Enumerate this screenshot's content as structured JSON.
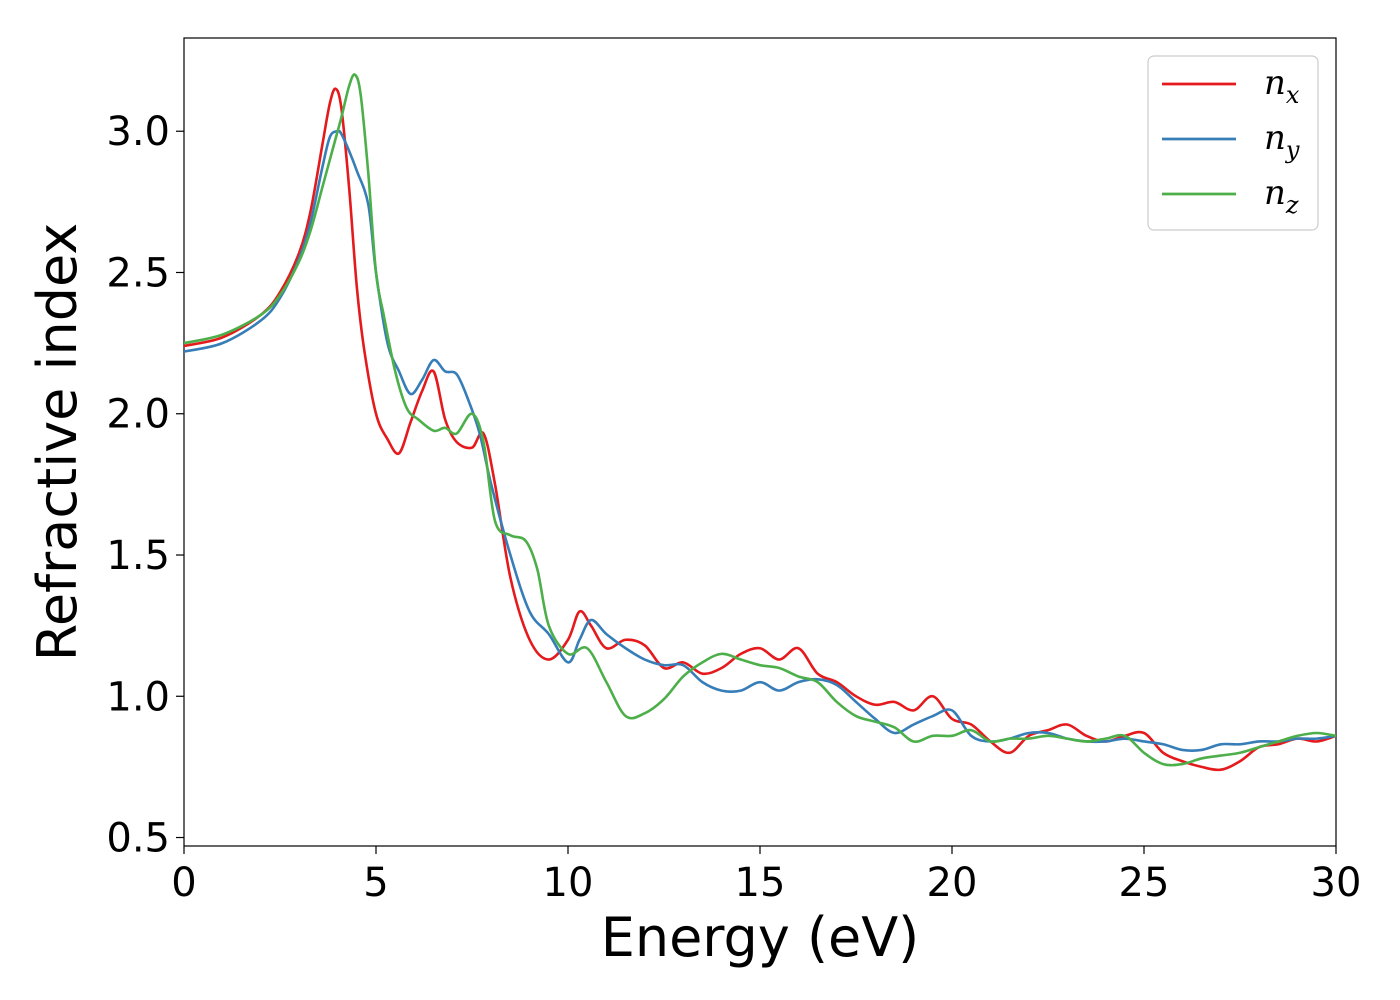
{
  "chart_data": {
    "type": "line",
    "title": "",
    "xlabel": "Energy (eV)",
    "ylabel": "Refractive index",
    "xlim": [
      0,
      30
    ],
    "ylim": [
      0.47,
      3.33
    ],
    "xticks": [
      0,
      5,
      10,
      15,
      20,
      25,
      30
    ],
    "xtick_labels": [
      "0",
      "5",
      "10",
      "15",
      "20",
      "25",
      "30"
    ],
    "yticks": [
      0.5,
      1.0,
      1.5,
      2.0,
      2.5,
      3.0
    ],
    "ytick_labels": [
      "0.5",
      "1.0",
      "1.5",
      "2.0",
      "2.5",
      "3.0"
    ],
    "grid": false,
    "legend_position": "top-right",
    "series": [
      {
        "name": "n_x",
        "label_base": "n",
        "label_sub": "x",
        "color": "#e41a1c",
        "x": [
          0,
          1,
          2,
          2.5,
          3,
          3.3,
          3.6,
          3.8,
          3.95,
          4.1,
          4.3,
          4.5,
          4.7,
          5,
          5.3,
          5.6,
          5.9,
          6.2,
          6.5,
          6.8,
          7.1,
          7.5,
          7.8,
          8.1,
          8.5,
          9,
          9.5,
          10,
          10.3,
          10.6,
          11,
          11.5,
          12,
          12.5,
          13,
          13.5,
          14,
          14.5,
          15,
          15.5,
          16,
          16.5,
          17,
          17.5,
          18,
          18.5,
          19,
          19.5,
          20,
          20.5,
          21,
          21.5,
          22,
          22.5,
          23,
          23.5,
          24,
          24.5,
          25,
          25.5,
          26,
          26.5,
          27,
          27.5,
          28,
          28.5,
          29,
          29.5,
          30
        ],
        "y": [
          2.24,
          2.27,
          2.35,
          2.43,
          2.57,
          2.72,
          2.95,
          3.1,
          3.15,
          3.08,
          2.8,
          2.45,
          2.22,
          2.0,
          1.91,
          1.86,
          1.97,
          2.08,
          2.15,
          1.98,
          1.9,
          1.88,
          1.93,
          1.75,
          1.42,
          1.2,
          1.13,
          1.2,
          1.3,
          1.25,
          1.17,
          1.2,
          1.18,
          1.1,
          1.12,
          1.08,
          1.1,
          1.15,
          1.17,
          1.13,
          1.17,
          1.08,
          1.05,
          1.0,
          0.97,
          0.98,
          0.95,
          1.0,
          0.92,
          0.9,
          0.84,
          0.8,
          0.86,
          0.88,
          0.9,
          0.86,
          0.84,
          0.86,
          0.87,
          0.8,
          0.77,
          0.75,
          0.74,
          0.77,
          0.82,
          0.83,
          0.85,
          0.84,
          0.86
        ]
      },
      {
        "name": "n_y",
        "label_base": "n",
        "label_sub": "y",
        "color": "#377eb8",
        "x": [
          0,
          1,
          2,
          2.5,
          3,
          3.3,
          3.6,
          3.8,
          4.0,
          4.1,
          4.3,
          4.5,
          4.8,
          5,
          5.3,
          5.6,
          5.9,
          6.2,
          6.5,
          6.8,
          7.1,
          7.4,
          7.7,
          8,
          8.5,
          9,
          9.5,
          10,
          10.3,
          10.6,
          11,
          11.5,
          12,
          12.5,
          13,
          13.5,
          14,
          14.5,
          15,
          15.5,
          16,
          16.5,
          17,
          17.5,
          18,
          18.5,
          19,
          19.5,
          20,
          20.5,
          21,
          21.5,
          22,
          22.5,
          23,
          23.5,
          24,
          24.5,
          25,
          25.5,
          26,
          26.5,
          27,
          27.5,
          28,
          28.5,
          29,
          29.5,
          30
        ],
        "y": [
          2.22,
          2.25,
          2.33,
          2.41,
          2.55,
          2.68,
          2.87,
          2.98,
          3.0,
          2.99,
          2.93,
          2.86,
          2.74,
          2.5,
          2.25,
          2.15,
          2.07,
          2.12,
          2.19,
          2.15,
          2.14,
          2.05,
          1.93,
          1.75,
          1.5,
          1.3,
          1.22,
          1.12,
          1.2,
          1.27,
          1.22,
          1.17,
          1.13,
          1.11,
          1.11,
          1.05,
          1.02,
          1.02,
          1.05,
          1.02,
          1.05,
          1.06,
          1.04,
          0.98,
          0.92,
          0.87,
          0.9,
          0.93,
          0.95,
          0.86,
          0.84,
          0.85,
          0.87,
          0.87,
          0.85,
          0.84,
          0.84,
          0.85,
          0.84,
          0.83,
          0.81,
          0.81,
          0.83,
          0.83,
          0.84,
          0.84,
          0.85,
          0.85,
          0.86
        ]
      },
      {
        "name": "n_z",
        "label_base": "n",
        "label_sub": "z",
        "color": "#4daf4a",
        "x": [
          0,
          1,
          2,
          2.5,
          3,
          3.3,
          3.6,
          3.9,
          4.1,
          4.3,
          4.45,
          4.6,
          4.8,
          5,
          5.2,
          5.5,
          5.8,
          6.1,
          6.5,
          6.8,
          7.1,
          7.5,
          7.8,
          8.1,
          8.5,
          8.9,
          9.2,
          9.5,
          10,
          10.5,
          11,
          11.5,
          12,
          12.5,
          13,
          13.5,
          14,
          14.5,
          15,
          15.5,
          16,
          16.5,
          17,
          17.5,
          18,
          18.5,
          19,
          19.5,
          20,
          20.5,
          21,
          21.5,
          22,
          22.5,
          23,
          23.5,
          24,
          24.5,
          25,
          25.5,
          26,
          26.5,
          27,
          27.5,
          28,
          28.5,
          29,
          29.5,
          30
        ],
        "y": [
          2.25,
          2.28,
          2.35,
          2.42,
          2.54,
          2.65,
          2.8,
          2.95,
          3.05,
          3.16,
          3.2,
          3.13,
          2.85,
          2.5,
          2.35,
          2.15,
          2.02,
          1.98,
          1.94,
          1.95,
          1.93,
          2.0,
          1.9,
          1.62,
          1.57,
          1.55,
          1.45,
          1.25,
          1.15,
          1.17,
          1.05,
          0.93,
          0.94,
          0.99,
          1.07,
          1.12,
          1.15,
          1.13,
          1.11,
          1.1,
          1.07,
          1.05,
          0.98,
          0.93,
          0.91,
          0.89,
          0.84,
          0.86,
          0.86,
          0.88,
          0.84,
          0.85,
          0.85,
          0.86,
          0.85,
          0.84,
          0.85,
          0.86,
          0.8,
          0.76,
          0.76,
          0.78,
          0.79,
          0.8,
          0.82,
          0.84,
          0.86,
          0.87,
          0.86
        ]
      }
    ]
  }
}
